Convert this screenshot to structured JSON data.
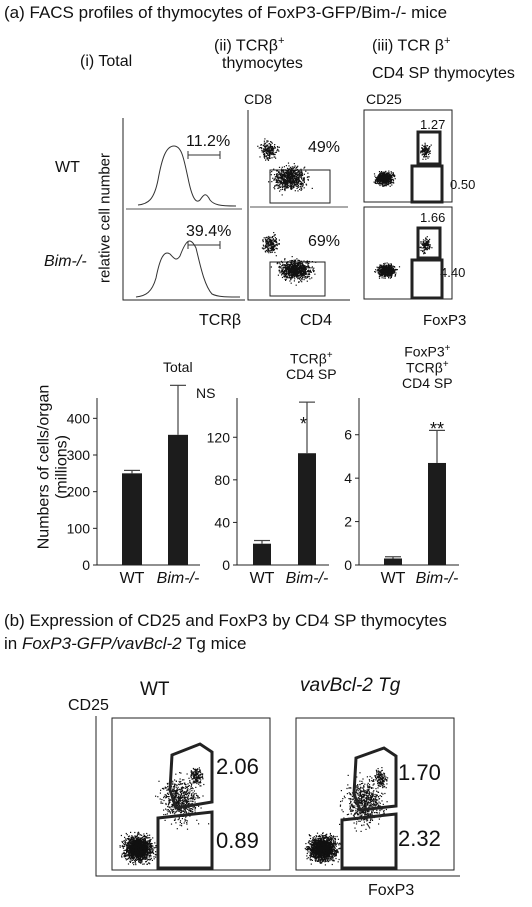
{
  "panel_a": {
    "title": "(a) FACS profiles of thymocytes of FoxP3-GFP/Bim-/- mice",
    "col_i": "(i) Total",
    "col_ii_l1": "(ii) TCRβ",
    "col_ii_sup": "+",
    "col_ii_l2": "thymocytes",
    "col_iii_l1": "(iii) TCR β",
    "col_iii_sup": "+",
    "col_iii_l2": "CD4 SP thymocytes",
    "row_wt": "WT",
    "row_bim": "Bim-/-",
    "y_hist": "relative cell number",
    "x_hist": "TCRβ",
    "x_cd4": "CD4",
    "y_cd8": "CD8",
    "y_cd25": "CD25",
    "x_foxp3": "FoxP3",
    "hist_wt_pct": "11.2%",
    "hist_bim_pct": "39.4%",
    "cd4_wt_pct": "49%",
    "cd4_bim_pct": "69%",
    "treg_wt_upper": "1.27",
    "treg_wt_lower": "0.50",
    "treg_bim_upper": "1.66",
    "treg_bim_lower": "4.40"
  },
  "bar_panels": {
    "y_label_l1": "Numbers of cells/organ",
    "y_label_l2": "(millions)",
    "p1_title": "Total",
    "p1_sig": "NS",
    "p2_title_l1": "TCRβ",
    "p2_title_sup": "+",
    "p2_title_l2": "CD4 SP",
    "p2_sig": "*",
    "p3_title_l1": "FoxP3",
    "p3_title_sup": "+",
    "p3_title_l2": "TCRβ",
    "p3_title_sup2": "+",
    "p3_title_l3": "CD4 SP",
    "p3_sig": "**",
    "cat_wt": "WT",
    "cat_bim": "Bim-/-"
  },
  "chart_data": [
    {
      "type": "bar",
      "title": "Total",
      "categories": [
        "WT",
        "Bim-/-"
      ],
      "values": [
        250,
        355
      ],
      "errors": [
        8,
        135
      ],
      "ylim": [
        0,
        450
      ],
      "yticks": [
        0,
        100,
        200,
        300,
        400
      ],
      "significance": "NS"
    },
    {
      "type": "bar",
      "title": "TCRβ+ CD4 SP",
      "categories": [
        "WT",
        "Bim-/-"
      ],
      "values": [
        20,
        105
      ],
      "errors": [
        3,
        48
      ],
      "ylim": [
        0,
        155
      ],
      "yticks": [
        0,
        40,
        80,
        120
      ],
      "significance": "*"
    },
    {
      "type": "bar",
      "title": "FoxP3+ TCRβ+ CD4 SP",
      "categories": [
        "WT",
        "Bim-/-"
      ],
      "values": [
        0.3,
        4.7
      ],
      "errors": [
        0.08,
        1.5
      ],
      "ylim": [
        0,
        7.6
      ],
      "yticks": [
        0,
        2,
        4,
        6
      ],
      "significance": "**"
    }
  ],
  "panel_b": {
    "title_l1": "(b) Expression of CD25 and FoxP3 by CD4 SP thymocytes",
    "title_l2_pre": "in ",
    "title_l2_italic": "FoxP3-GFP/vavBcl-2",
    "title_l2_post": " Tg mice",
    "wt": "WT",
    "tg": "vavBcl-2 Tg",
    "y_cd25": "CD25",
    "x_foxp3": "FoxP3",
    "wt_upper": "2.06",
    "wt_lower": "0.89",
    "tg_upper": "1.70",
    "tg_lower": "2.32"
  }
}
